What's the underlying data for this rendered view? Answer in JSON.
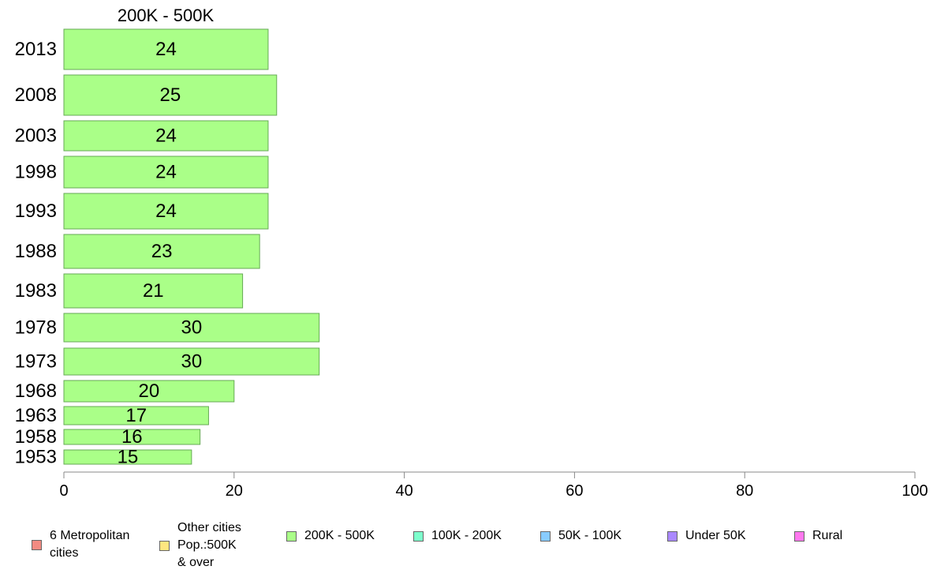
{
  "chart_data": {
    "type": "bar",
    "orientation": "horizontal",
    "title": "200K - 500K",
    "categories": [
      "2013",
      "2008",
      "2003",
      "1998",
      "1993",
      "1988",
      "1983",
      "1978",
      "1973",
      "1968",
      "1963",
      "1958",
      "1953"
    ],
    "values": [
      24,
      25,
      24,
      24,
      24,
      23,
      21,
      30,
      30,
      20,
      17,
      16,
      15
    ],
    "data_labels": [
      "24",
      "25",
      "24",
      "24",
      "24",
      "23",
      "21",
      "30",
      "30",
      "20",
      "17",
      "16",
      "15"
    ],
    "bar_color": "#aaff88",
    "bar_border_color": "#66aa55",
    "xlim": [
      0,
      100
    ],
    "x_ticks": [
      0,
      20,
      40,
      60,
      80,
      100
    ],
    "x_tick_labels": [
      "0",
      "20",
      "40",
      "60",
      "80",
      "100"
    ],
    "grid": false,
    "legend_position": "bottom",
    "legend": [
      {
        "label": "6 Metropolitan\n cities",
        "color": "#f28b82"
      },
      {
        "label": "Other cities\nPop.:500K\n & over",
        "color": "#ffe680"
      },
      {
        "label": "200K - 500K",
        "color": "#aaff88"
      },
      {
        "label": "100K - 200K",
        "color": "#7dffcc"
      },
      {
        "label": "50K - 100K",
        "color": "#88ccff"
      },
      {
        "label": "Under 50K",
        "color": "#aa88ff"
      },
      {
        "label": "Rural",
        "color": "#ff77ee"
      }
    ]
  }
}
